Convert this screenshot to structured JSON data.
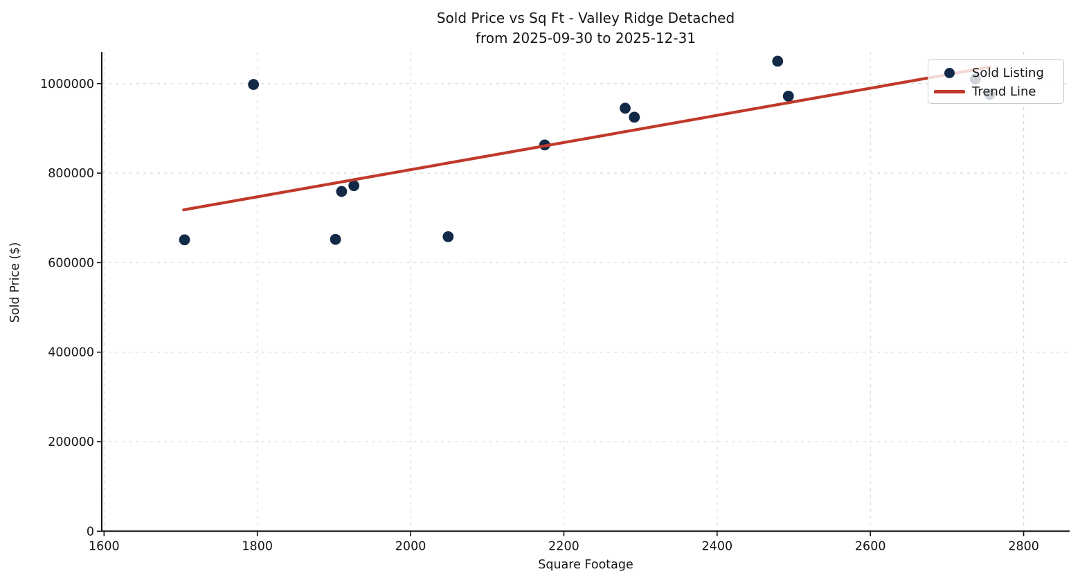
{
  "chart_data": {
    "type": "scatter",
    "title": "Sold Price vs Sq Ft - Valley Ridge Detached",
    "subtitle": "from 2025-09-30 to 2025-12-31",
    "xlabel": "Square Footage",
    "ylabel": "Sold Price ($)",
    "xlim": [
      1597,
      2860
    ],
    "ylim": [
      0,
      1070800
    ],
    "x_ticks": [
      1600,
      1800,
      2000,
      2200,
      2400,
      2600,
      2800
    ],
    "y_ticks": [
      0,
      200000,
      400000,
      600000,
      800000,
      1000000
    ],
    "grid": true,
    "legend_position": "upper right",
    "series": [
      {
        "name": "Sold Listing",
        "type": "scatter",
        "color": "#122a47",
        "points": [
          [
            1705,
            651000
          ],
          [
            1795,
            998000
          ],
          [
            1902,
            652000
          ],
          [
            1910,
            759000
          ],
          [
            1926,
            772000
          ],
          [
            2049,
            658000
          ],
          [
            2175,
            863000
          ],
          [
            2280,
            945000
          ],
          [
            2292,
            925000
          ],
          [
            2479,
            1050000
          ],
          [
            2493,
            972000
          ],
          [
            2737,
            1010000
          ],
          [
            2756,
            976000
          ]
        ]
      },
      {
        "name": "Trend Line",
        "type": "line",
        "color": "#c0392b",
        "points": [
          [
            1704,
            718000
          ],
          [
            2756,
            1037000
          ]
        ]
      }
    ]
  }
}
